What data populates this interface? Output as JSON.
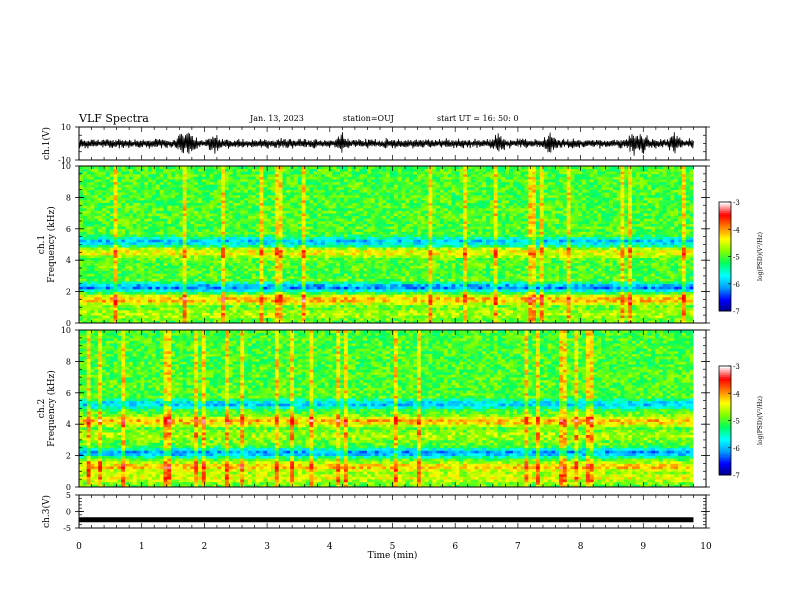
{
  "header": {
    "title": "VLF Spectra",
    "date": "Jan. 13, 2023",
    "station": "station=OUJ",
    "start": "start UT =  16: 50: 0"
  },
  "chart_data": [
    {
      "type": "line",
      "panel": "ch1-waveform",
      "ylabel": "ch.1(V)",
      "ylim": [
        -10,
        10
      ],
      "yticks": [
        "10",
        "-10"
      ],
      "xlim": [
        0,
        10
      ],
      "data_end_min": 9.8
    },
    {
      "type": "heatmap",
      "panel": "ch1-spectrogram",
      "ylabel_line1": "ch.1",
      "ylabel_line2": "Frequency (kHz)",
      "ylim": [
        0,
        10
      ],
      "yticks": [
        "0",
        "2",
        "4",
        "6",
        "8",
        "10"
      ],
      "xlim": [
        0,
        10
      ],
      "colorbar": {
        "label": "log(PSD)(V²/Hz)",
        "range": [
          -7,
          -3
        ],
        "ticks": [
          "-3",
          "-4",
          "-5",
          "-6",
          "-7"
        ],
        "colors": [
          "#000080",
          "#0000ff",
          "#00a0ff",
          "#00ffff",
          "#00ff60",
          "#80ff00",
          "#ffff00",
          "#ff8000",
          "#ff0000",
          "#ffffff"
        ]
      },
      "bands_khz": [
        {
          "f": 0.6,
          "level": -4.6
        },
        {
          "f": 1.5,
          "level": -4.0
        },
        {
          "f": 2.3,
          "level": -6.3
        },
        {
          "f": 3.2,
          "level": -5.0
        },
        {
          "f": 4.5,
          "level": -4.3
        },
        {
          "f": 5.2,
          "level": -6.0
        },
        {
          "f": 8.0,
          "level": -5.0
        }
      ]
    },
    {
      "type": "heatmap",
      "panel": "ch2-spectrogram",
      "ylabel_line1": "ch.2",
      "ylabel_line2": "Frequency (kHz)",
      "ylim": [
        0,
        10
      ],
      "yticks": [
        "0",
        "2",
        "4",
        "6",
        "8",
        "10"
      ],
      "xlim": [
        0,
        10
      ],
      "colorbar": {
        "label": "log(PSD)(V²/Hz)",
        "range": [
          -7,
          -3
        ],
        "ticks": [
          "-3",
          "-4",
          "-5",
          "-6",
          "-7"
        ]
      },
      "bands_khz": [
        {
          "f": 0.6,
          "level": -4.4
        },
        {
          "f": 1.3,
          "level": -4.1
        },
        {
          "f": 2.2,
          "level": -6.2
        },
        {
          "f": 3.3,
          "level": -4.6
        },
        {
          "f": 4.2,
          "level": -4.0
        },
        {
          "f": 5.3,
          "level": -6.0
        },
        {
          "f": 8.0,
          "level": -5.0
        }
      ]
    },
    {
      "type": "line",
      "panel": "ch3-waveform",
      "ylabel": "ch.3(V)",
      "ylim": [
        -5,
        5
      ],
      "yticks": [
        "5",
        "0",
        "-5"
      ],
      "xlim": [
        0,
        10
      ],
      "xlabel": "Time (min)",
      "xticks": [
        "0",
        "1",
        "2",
        "3",
        "4",
        "5",
        "6",
        "7",
        "8",
        "9",
        "10"
      ],
      "constant_value": -2.5
    }
  ]
}
